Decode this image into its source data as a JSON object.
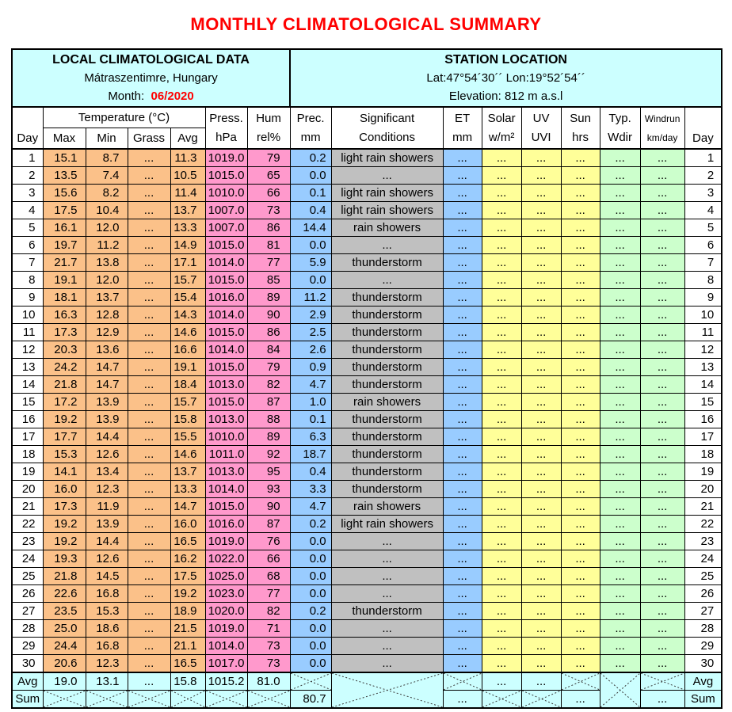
{
  "title": "MONTHLY CLIMATOLOGICAL SUMMARY",
  "info": {
    "left": {
      "title": "LOCAL CLIMATOLOGICAL DATA",
      "location": "Mátraszentimre, Hungary",
      "month_label": "Month:",
      "month_value": "06/2020"
    },
    "right": {
      "title": "STATION LOCATION",
      "latlon": "Lat:47°54´30´´ Lon:19°52´54´´",
      "elevation": "Elevation: 812 m a.s.l"
    }
  },
  "header": {
    "day": "Day",
    "temp_group": "Temperature (°C)",
    "temp_sub": [
      "Max",
      "Min",
      "Grass",
      "Avg"
    ],
    "press": [
      "Press.",
      "hPa"
    ],
    "hum": [
      "Hum",
      "rel%"
    ],
    "prec": [
      "Prec.",
      "mm"
    ],
    "cond": [
      "Significant",
      "Conditions"
    ],
    "et": [
      "ET",
      "mm"
    ],
    "solar": [
      "Solar",
      "w/m²"
    ],
    "uv": [
      "UV",
      "UVI"
    ],
    "sun": [
      "Sun",
      "hrs"
    ],
    "wdir": [
      "Typ.",
      "Wdir"
    ],
    "windrun": [
      "Windrun",
      "km/day"
    ]
  },
  "rows": [
    [
      "1",
      "15.1",
      "8.7",
      "...",
      "11.3",
      "1019.0",
      "79",
      "0.2",
      "light rain showers",
      "...",
      "...",
      "...",
      "...",
      "...",
      "..."
    ],
    [
      "2",
      "13.5",
      "7.4",
      "...",
      "10.5",
      "1015.0",
      "65",
      "0.0",
      "...",
      "...",
      "...",
      "...",
      "...",
      "...",
      "..."
    ],
    [
      "3",
      "15.6",
      "8.2",
      "...",
      "11.4",
      "1010.0",
      "66",
      "0.1",
      "light rain showers",
      "...",
      "...",
      "...",
      "...",
      "...",
      "..."
    ],
    [
      "4",
      "17.5",
      "10.4",
      "...",
      "13.7",
      "1007.0",
      "73",
      "0.4",
      "light rain showers",
      "...",
      "...",
      "...",
      "...",
      "...",
      "..."
    ],
    [
      "5",
      "16.1",
      "12.0",
      "...",
      "13.3",
      "1007.0",
      "86",
      "14.4",
      "rain showers",
      "...",
      "...",
      "...",
      "...",
      "...",
      "..."
    ],
    [
      "6",
      "19.7",
      "11.2",
      "...",
      "14.9",
      "1015.0",
      "81",
      "0.0",
      "...",
      "...",
      "...",
      "...",
      "...",
      "...",
      "..."
    ],
    [
      "7",
      "21.7",
      "13.8",
      "...",
      "17.1",
      "1014.0",
      "77",
      "5.9",
      "thunderstorm",
      "...",
      "...",
      "...",
      "...",
      "...",
      "..."
    ],
    [
      "8",
      "19.1",
      "12.0",
      "...",
      "15.7",
      "1015.0",
      "85",
      "0.0",
      "...",
      "...",
      "...",
      "...",
      "...",
      "...",
      "..."
    ],
    [
      "9",
      "18.1",
      "13.7",
      "...",
      "15.4",
      "1016.0",
      "89",
      "11.2",
      "thunderstorm",
      "...",
      "...",
      "...",
      "...",
      "...",
      "..."
    ],
    [
      "10",
      "16.3",
      "12.8",
      "...",
      "14.3",
      "1014.0",
      "90",
      "2.9",
      "thunderstorm",
      "...",
      "...",
      "...",
      "...",
      "...",
      "..."
    ],
    [
      "11",
      "17.3",
      "12.9",
      "...",
      "14.6",
      "1015.0",
      "86",
      "2.5",
      "thunderstorm",
      "...",
      "...",
      "...",
      "...",
      "...",
      "..."
    ],
    [
      "12",
      "20.3",
      "13.6",
      "...",
      "16.6",
      "1014.0",
      "84",
      "2.6",
      "thunderstorm",
      "...",
      "...",
      "...",
      "...",
      "...",
      "..."
    ],
    [
      "13",
      "24.2",
      "14.7",
      "...",
      "19.1",
      "1015.0",
      "79",
      "0.9",
      "thunderstorm",
      "...",
      "...",
      "...",
      "...",
      "...",
      "..."
    ],
    [
      "14",
      "21.8",
      "14.7",
      "...",
      "18.4",
      "1013.0",
      "82",
      "4.7",
      "thunderstorm",
      "...",
      "...",
      "...",
      "...",
      "...",
      "..."
    ],
    [
      "15",
      "17.2",
      "13.9",
      "...",
      "15.7",
      "1015.0",
      "87",
      "1.0",
      "rain showers",
      "...",
      "...",
      "...",
      "...",
      "...",
      "..."
    ],
    [
      "16",
      "19.2",
      "13.9",
      "...",
      "15.8",
      "1013.0",
      "88",
      "0.1",
      "thunderstorm",
      "...",
      "...",
      "...",
      "...",
      "...",
      "..."
    ],
    [
      "17",
      "17.7",
      "14.4",
      "...",
      "15.5",
      "1010.0",
      "89",
      "6.3",
      "thunderstorm",
      "...",
      "...",
      "...",
      "...",
      "...",
      "..."
    ],
    [
      "18",
      "15.3",
      "12.6",
      "...",
      "14.6",
      "1011.0",
      "92",
      "18.7",
      "thunderstorm",
      "...",
      "...",
      "...",
      "...",
      "...",
      "..."
    ],
    [
      "19",
      "14.1",
      "13.4",
      "...",
      "13.7",
      "1013.0",
      "95",
      "0.4",
      "thunderstorm",
      "...",
      "...",
      "...",
      "...",
      "...",
      "..."
    ],
    [
      "20",
      "16.0",
      "12.3",
      "...",
      "13.3",
      "1014.0",
      "93",
      "3.3",
      "thunderstorm",
      "...",
      "...",
      "...",
      "...",
      "...",
      "..."
    ],
    [
      "21",
      "17.3",
      "11.9",
      "...",
      "14.7",
      "1015.0",
      "90",
      "4.7",
      "rain showers",
      "...",
      "...",
      "...",
      "...",
      "...",
      "..."
    ],
    [
      "22",
      "19.2",
      "13.9",
      "...",
      "16.0",
      "1016.0",
      "87",
      "0.2",
      "light rain showers",
      "...",
      "...",
      "...",
      "...",
      "...",
      "..."
    ],
    [
      "23",
      "19.2",
      "14.4",
      "...",
      "16.5",
      "1019.0",
      "76",
      "0.0",
      "...",
      "...",
      "...",
      "...",
      "...",
      "...",
      "..."
    ],
    [
      "24",
      "19.3",
      "12.6",
      "...",
      "16.2",
      "1022.0",
      "66",
      "0.0",
      "...",
      "...",
      "...",
      "...",
      "...",
      "...",
      "..."
    ],
    [
      "25",
      "21.8",
      "14.5",
      "...",
      "17.5",
      "1025.0",
      "68",
      "0.0",
      "...",
      "...",
      "...",
      "...",
      "...",
      "...",
      "..."
    ],
    [
      "26",
      "22.6",
      "16.8",
      "...",
      "19.2",
      "1023.0",
      "77",
      "0.0",
      "...",
      "...",
      "...",
      "...",
      "...",
      "...",
      "..."
    ],
    [
      "27",
      "23.5",
      "15.3",
      "...",
      "18.9",
      "1020.0",
      "82",
      "0.2",
      "thunderstorm",
      "...",
      "...",
      "...",
      "...",
      "...",
      "..."
    ],
    [
      "28",
      "25.0",
      "18.6",
      "...",
      "21.5",
      "1019.0",
      "71",
      "0.0",
      "...",
      "...",
      "...",
      "...",
      "...",
      "...",
      "..."
    ],
    [
      "29",
      "24.4",
      "16.8",
      "...",
      "21.1",
      "1014.0",
      "73",
      "0.0",
      "...",
      "...",
      "...",
      "...",
      "...",
      "...",
      "..."
    ],
    [
      "30",
      "20.6",
      "12.3",
      "...",
      "16.5",
      "1017.0",
      "73",
      "0.0",
      "...",
      "...",
      "...",
      "...",
      "...",
      "...",
      "..."
    ]
  ],
  "avg_row": {
    "label": "Avg",
    "max": "19.0",
    "min": "13.1",
    "grass": "...",
    "avg": "15.8",
    "press": "1015.2",
    "hum": "81.0",
    "solar": "...",
    "uv": "...",
    "crossed": [
      "prec",
      "conditions",
      "et",
      "sun",
      "wdir",
      "windrun"
    ]
  },
  "sum_row": {
    "label": "Sum",
    "prec": "80.7",
    "et": "...",
    "sun": "...",
    "windrun": "...",
    "crossed": [
      "max",
      "min",
      "grass",
      "avg",
      "press",
      "hum",
      "solar",
      "uv",
      "conditions",
      "wdir"
    ]
  },
  "colors": {
    "title_red": "#ff0000",
    "panel_cyan": "#ccffff",
    "temperature_orange": "#fbc189",
    "pressure_humidity_pink": "#ff99cc",
    "precip_et_blue": "#99ccff",
    "conditions_gray": "#c0c0c0",
    "solar_uv_sun_yellow": "#ffff99",
    "wind_green": "#ccffcc",
    "aggregate_cyan": "#ccffff"
  }
}
